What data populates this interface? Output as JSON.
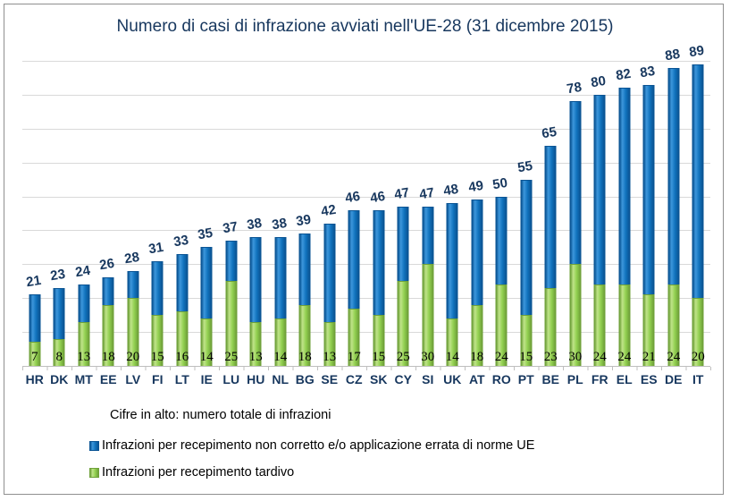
{
  "chart_data": {
    "type": "bar",
    "stacked": true,
    "title": "Numero di casi di infrazione avviati nell'UE-28 (31 dicembre 2015)",
    "note": "Cifre in alto: numero totale di infrazioni",
    "categories": [
      "HR",
      "DK",
      "MT",
      "EE",
      "LV",
      "FI",
      "LT",
      "IE",
      "LU",
      "HU",
      "NL",
      "BG",
      "SE",
      "CZ",
      "SK",
      "CY",
      "SI",
      "UK",
      "AT",
      "RO",
      "PT",
      "BE",
      "PL",
      "FR",
      "EL",
      "ES",
      "DE",
      "IT"
    ],
    "series": [
      {
        "name": "Infrazioni per recepimento non corretto e/o applicazione errata di norme UE",
        "color": "#1173BE",
        "highlight": "#3D97DC",
        "dark": "#0A5494",
        "values": [
          14,
          15,
          11,
          8,
          8,
          16,
          17,
          21,
          12,
          25,
          24,
          21,
          29,
          29,
          31,
          22,
          17,
          34,
          31,
          26,
          40,
          42,
          48,
          56,
          58,
          62,
          64,
          69
        ]
      },
      {
        "name": "Infrazioni per recepimento tardivo",
        "color": "#92D050",
        "highlight": "#C0E489",
        "dark": "#6FA13A",
        "values": [
          7,
          8,
          13,
          18,
          20,
          15,
          16,
          14,
          25,
          13,
          14,
          18,
          13,
          17,
          15,
          25,
          30,
          14,
          18,
          24,
          15,
          23,
          30,
          24,
          24,
          21,
          24,
          20
        ]
      }
    ],
    "totals": [
      21,
      23,
      24,
      26,
      28,
      31,
      33,
      35,
      37,
      38,
      38,
      39,
      42,
      46,
      46,
      47,
      47,
      48,
      49,
      50,
      55,
      65,
      78,
      80,
      82,
      83,
      88,
      89
    ],
    "ylim": [
      0,
      90
    ],
    "grid_step": 10,
    "grid": "horizontal",
    "legend_position": "bottom-left",
    "label_colors": {
      "title": "#17375E",
      "totals": "#17375E",
      "series2_values": "#000000",
      "categories": "#17375E"
    },
    "gridline_color": "#D9D9D9",
    "axis_color": "#BFBFBF",
    "frame_color": "#8F8F8F"
  }
}
